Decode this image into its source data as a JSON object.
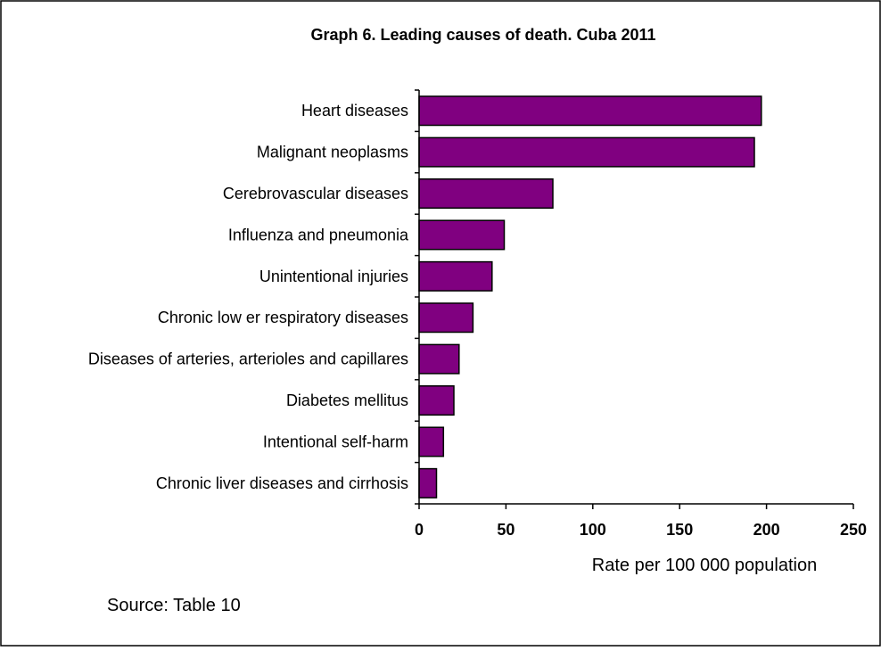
{
  "chart_data": {
    "type": "bar",
    "orientation": "horizontal",
    "title": "Graph 6. Leading causes of death. Cuba 2011",
    "xlabel": "Rate per 100 000 population",
    "ylabel": "",
    "categories": [
      "Heart diseases",
      "Malignant neoplasms",
      "Cerebrovascular diseases",
      "Influenza and pneumonia",
      "Unintentional injuries",
      "Chronic low er respiratory diseases",
      "Diseases of arteries, arterioles and capillares",
      "Diabetes mellitus",
      "Intentional self-harm",
      "Chronic liver diseases and cirrhosis"
    ],
    "values": [
      197,
      193,
      77,
      49,
      42,
      31,
      23,
      20,
      14,
      10
    ],
    "xlim": [
      0,
      250
    ],
    "xticks": [
      "0",
      "50",
      "100",
      "150",
      "200",
      "250"
    ],
    "grid": false,
    "legend": "none",
    "bar_color": "#800080",
    "bar_stroke": "#000000"
  },
  "footer": {
    "source": "Source: Table 10"
  }
}
